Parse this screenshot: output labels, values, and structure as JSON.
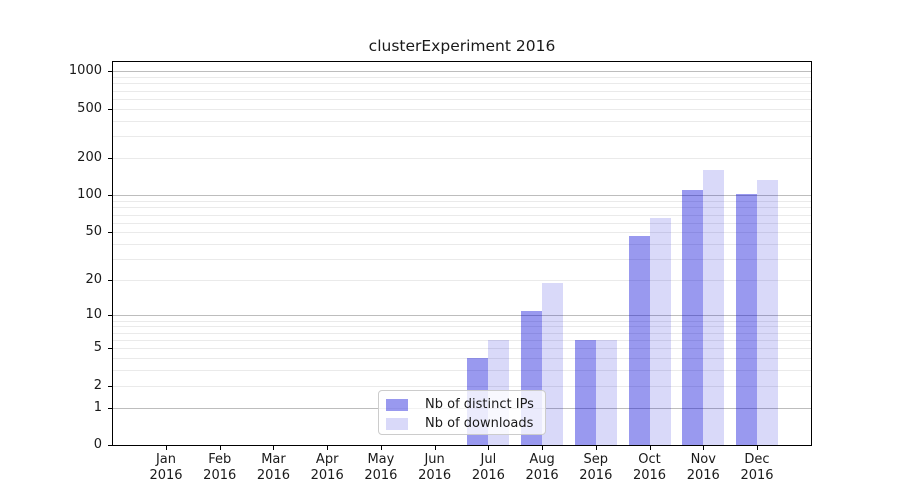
{
  "chart_data": {
    "type": "bar",
    "title": "clusterExperiment 2016",
    "categories": [
      "Jan",
      "Feb",
      "Mar",
      "Apr",
      "May",
      "Jun",
      "Jul",
      "Aug",
      "Sep",
      "Oct",
      "Nov",
      "Dec"
    ],
    "category_year": "2016",
    "series": [
      {
        "name": "Nb of distinct IPs",
        "color": "rgba(0,0,214,0.4)",
        "values": [
          0,
          0,
          0,
          0,
          0,
          0,
          4,
          11,
          6,
          47,
          111,
          103
        ]
      },
      {
        "name": "Nb of downloads",
        "color": "rgba(0,0,214,0.15)",
        "values": [
          0,
          0,
          0,
          0,
          0,
          0,
          6,
          19,
          6,
          65,
          160,
          133
        ]
      }
    ],
    "y_ticks": [
      0,
      1,
      2,
      5,
      10,
      20,
      50,
      100,
      200,
      500,
      1000
    ],
    "y_scale": "log1p",
    "ylim": [
      0,
      1190
    ],
    "grid": "on",
    "legend_position": "lower center"
  },
  "colors": {
    "text": "#1a1a1a",
    "spine": "#000000",
    "grid_major": "#bdbdbd",
    "grid_minor": "#eaeaea",
    "legend_border": "#cccccc",
    "legend_bg": "rgba(255,255,255,0.8)"
  }
}
